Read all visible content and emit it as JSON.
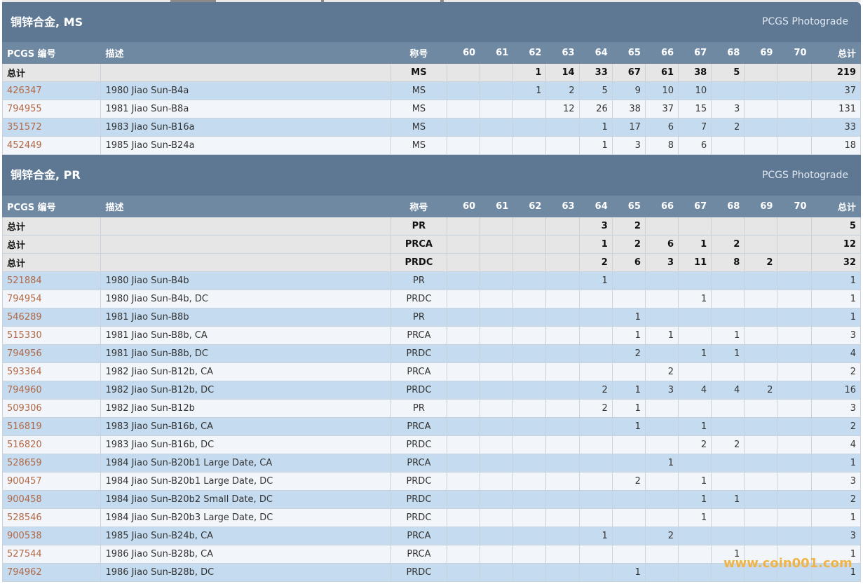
{
  "sections": [
    {
      "title": "铜锌合金, MS",
      "photograde": "PCGS Photograde",
      "columns": [
        "PCGS 编号",
        "描述",
        "称号",
        "60",
        "61",
        "62",
        "63",
        "64",
        "65",
        "66",
        "67",
        "68",
        "69",
        "70",
        "总计"
      ],
      "totals": [
        [
          "总计",
          "",
          "MS",
          "",
          "",
          "1",
          "14",
          "33",
          "67",
          "61",
          "38",
          "5",
          "",
          "",
          "219"
        ]
      ],
      "rows": [
        [
          "426347",
          "1980 Jiao Sun-B4a",
          "MS",
          "",
          "",
          "1",
          "2",
          "5",
          "9",
          "10",
          "10",
          "",
          "",
          "",
          "37"
        ],
        [
          "794955",
          "1981 Jiao Sun-B8a",
          "MS",
          "",
          "",
          "",
          "12",
          "26",
          "38",
          "37",
          "15",
          "3",
          "",
          "",
          "131"
        ],
        [
          "351572",
          "1983 Jiao Sun-B16a",
          "MS",
          "",
          "",
          "",
          "",
          "1",
          "17",
          "6",
          "7",
          "2",
          "",
          "",
          "33"
        ],
        [
          "452449",
          "1985 Jiao Sun-B24a",
          "MS",
          "",
          "",
          "",
          "",
          "1",
          "3",
          "8",
          "6",
          "",
          "",
          "",
          "18"
        ]
      ]
    },
    {
      "title": "铜锌合金, PR",
      "photograde": "PCGS Photograde",
      "columns": [
        "PCGS 编号",
        "描述",
        "称号",
        "60",
        "61",
        "62",
        "63",
        "64",
        "65",
        "66",
        "67",
        "68",
        "69",
        "70",
        "总计"
      ],
      "totals": [
        [
          "总计",
          "",
          "PR",
          "",
          "",
          "",
          "",
          "3",
          "2",
          "",
          "",
          "",
          "",
          "",
          "5"
        ],
        [
          "总计",
          "",
          "PRCA",
          "",
          "",
          "",
          "",
          "1",
          "2",
          "6",
          "1",
          "2",
          "",
          "",
          "12"
        ],
        [
          "总计",
          "",
          "PRDC",
          "",
          "",
          "",
          "",
          "2",
          "6",
          "3",
          "11",
          "8",
          "2",
          "",
          "32"
        ]
      ],
      "rows": [
        [
          "521884",
          "1980 Jiao Sun-B4b",
          "PR",
          "",
          "",
          "",
          "",
          "1",
          "",
          "",
          "",
          "",
          "",
          "",
          "1"
        ],
        [
          "794954",
          "1980 Jiao Sun-B4b, DC",
          "PRDC",
          "",
          "",
          "",
          "",
          "",
          "",
          "",
          "1",
          "",
          "",
          "",
          "1"
        ],
        [
          "546289",
          "1981 Jiao Sun-B8b",
          "PR",
          "",
          "",
          "",
          "",
          "",
          "1",
          "",
          "",
          "",
          "",
          "",
          "1"
        ],
        [
          "515330",
          "1981 Jiao Sun-B8b, CA",
          "PRCA",
          "",
          "",
          "",
          "",
          "",
          "1",
          "1",
          "",
          "1",
          "",
          "",
          "3"
        ],
        [
          "794956",
          "1981 Jiao Sun-B8b, DC",
          "PRDC",
          "",
          "",
          "",
          "",
          "",
          "2",
          "",
          "1",
          "1",
          "",
          "",
          "4"
        ],
        [
          "593364",
          "1982 Jiao Sun-B12b, CA",
          "PRCA",
          "",
          "",
          "",
          "",
          "",
          "",
          "2",
          "",
          "",
          "",
          "",
          "2"
        ],
        [
          "794960",
          "1982 Jiao Sun-B12b, DC",
          "PRDC",
          "",
          "",
          "",
          "",
          "2",
          "1",
          "3",
          "4",
          "4",
          "2",
          "",
          "16"
        ],
        [
          "509306",
          "1982 Jiao Sun-B12b",
          "PR",
          "",
          "",
          "",
          "",
          "2",
          "1",
          "",
          "",
          "",
          "",
          "",
          "3"
        ],
        [
          "516819",
          "1983 Jiao Sun-B16b, CA",
          "PRCA",
          "",
          "",
          "",
          "",
          "",
          "1",
          "",
          "1",
          "",
          "",
          "",
          "2"
        ],
        [
          "516820",
          "1983 Jiao Sun-B16b, DC",
          "PRDC",
          "",
          "",
          "",
          "",
          "",
          "",
          "",
          "2",
          "2",
          "",
          "",
          "4"
        ],
        [
          "528659",
          "1984 Jiao Sun-B20b1 Large Date, CA",
          "PRCA",
          "",
          "",
          "",
          "",
          "",
          "",
          "1",
          "",
          "",
          "",
          "",
          "1"
        ],
        [
          "900457",
          "1984 Jiao Sun-B20b1 Large Date, DC",
          "PRDC",
          "",
          "",
          "",
          "",
          "",
          "2",
          "",
          "1",
          "",
          "",
          "",
          "3"
        ],
        [
          "900458",
          "1984 Jiao Sun-B20b2 Small Date, DC",
          "PRDC",
          "",
          "",
          "",
          "",
          "",
          "",
          "",
          "1",
          "1",
          "",
          "",
          "2"
        ],
        [
          "528546",
          "1984 Jiao Sun-B20b3 Large Date, DC",
          "PRDC",
          "",
          "",
          "",
          "",
          "",
          "",
          "",
          "1",
          "",
          "",
          "",
          "1"
        ],
        [
          "900538",
          "1985 Jiao Sun-B24b, CA",
          "PRCA",
          "",
          "",
          "",
          "",
          "1",
          "",
          "2",
          "",
          "",
          "",
          "",
          "3"
        ],
        [
          "527544",
          "1986 Jiao Sun-B28b, CA",
          "PRCA",
          "",
          "",
          "",
          "",
          "",
          "",
          "",
          "",
          "1",
          "",
          "",
          "1"
        ],
        [
          "794962",
          "1986 Jiao Sun-B28b, DC",
          "PRDC",
          "",
          "",
          "",
          "",
          "",
          "1",
          "",
          "",
          "",
          "",
          "",
          "1"
        ]
      ]
    }
  ],
  "watermark": "www.coin001.com",
  "colors": {
    "section_header_bg": "#5e7792",
    "column_header_bg": "#7089a3",
    "row_odd_bg": "#c5dcf0",
    "row_even_bg": "#f2f6fa",
    "total_row_bg": "#e6e6e6",
    "link_color": "#b26845",
    "watermark_color": "#f0b347"
  }
}
